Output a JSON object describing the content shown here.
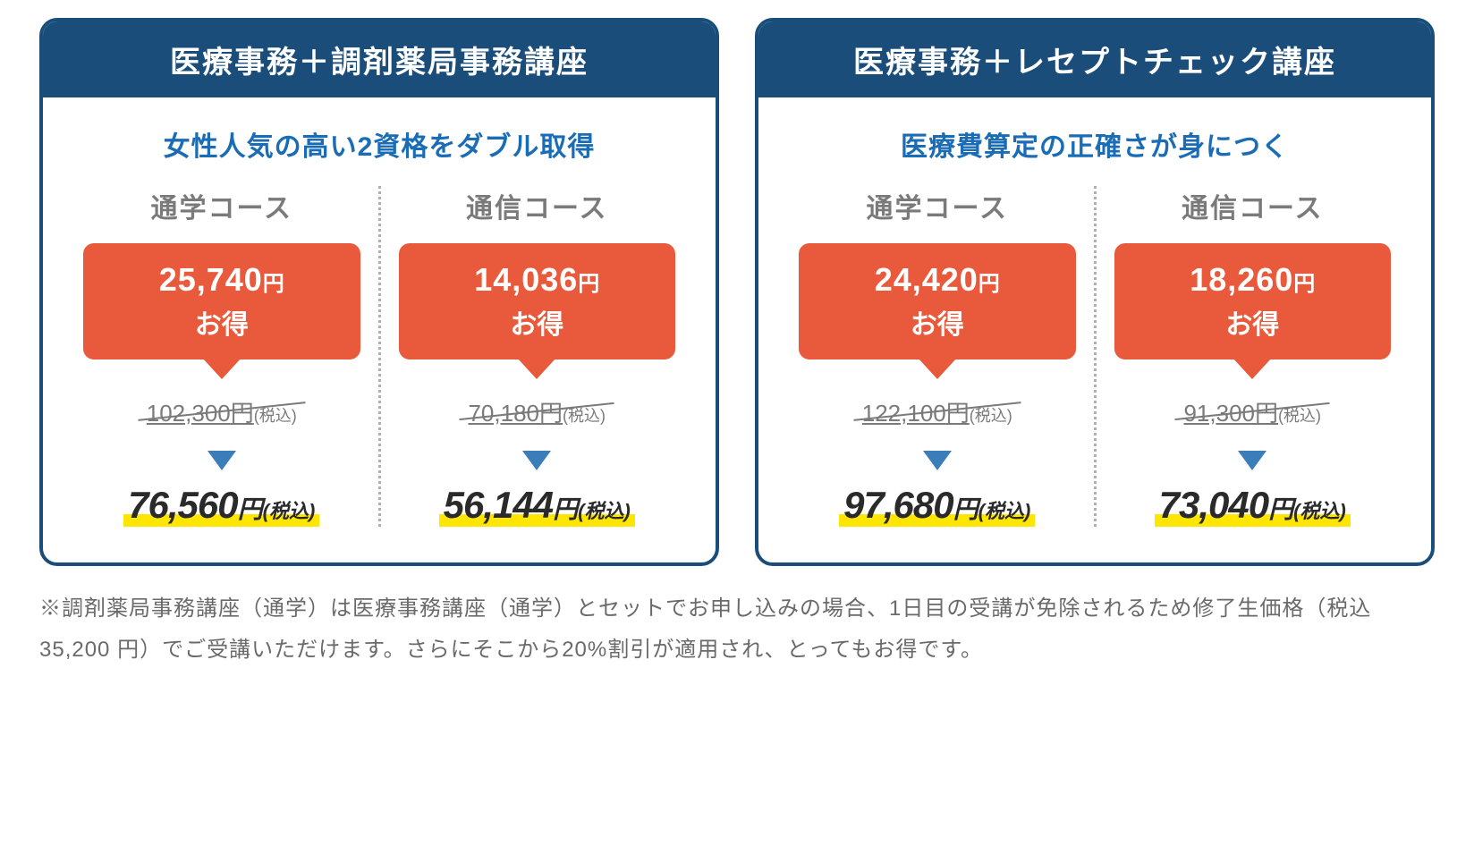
{
  "colors": {
    "header_bg": "#1a4d7a",
    "border": "#1a4d7a",
    "subtitle": "#1a6db5",
    "badge_bg": "#e85a3b",
    "arrow": "#3a7db8",
    "highlight": "#ffe600",
    "muted": "#7a7a7a"
  },
  "cards": [
    {
      "title": "医療事務＋調剤薬局事務講座",
      "subtitle": "女性人気の高い2資格をダブル取得",
      "courses": [
        {
          "label": "通学コース",
          "discount_amount": "25,740",
          "discount_yen": "円",
          "discount_otoku": "お得",
          "old_price": "102,300",
          "old_yen": "円",
          "old_tax": "(税込)",
          "new_price": "76,560",
          "new_yen": "円",
          "new_tax": "(税込)"
        },
        {
          "label": "通信コース",
          "discount_amount": "14,036",
          "discount_yen": "円",
          "discount_otoku": "お得",
          "old_price": "70,180",
          "old_yen": "円",
          "old_tax": "(税込)",
          "new_price": "56,144",
          "new_yen": "円",
          "new_tax": "(税込)"
        }
      ]
    },
    {
      "title": "医療事務＋レセプトチェック講座",
      "subtitle": "医療費算定の正確さが身につく",
      "courses": [
        {
          "label": "通学コース",
          "discount_amount": "24,420",
          "discount_yen": "円",
          "discount_otoku": "お得",
          "old_price": "122,100",
          "old_yen": "円",
          "old_tax": "(税込)",
          "new_price": "97,680",
          "new_yen": "円",
          "new_tax": "(税込)"
        },
        {
          "label": "通信コース",
          "discount_amount": "18,260",
          "discount_yen": "円",
          "discount_otoku": "お得",
          "old_price": "91,300",
          "old_yen": "円",
          "old_tax": "(税込)",
          "new_price": "73,040",
          "new_yen": "円",
          "new_tax": "(税込)"
        }
      ]
    }
  ],
  "footnote": "※調剤薬局事務講座（通学）は医療事務講座（通学）とセットでお申し込みの場合、1日目の受講が免除されるため修了生価格（税込35,200 円）でご受講いただけます。さらにそこから20%割引が適用され、とってもお得です。"
}
